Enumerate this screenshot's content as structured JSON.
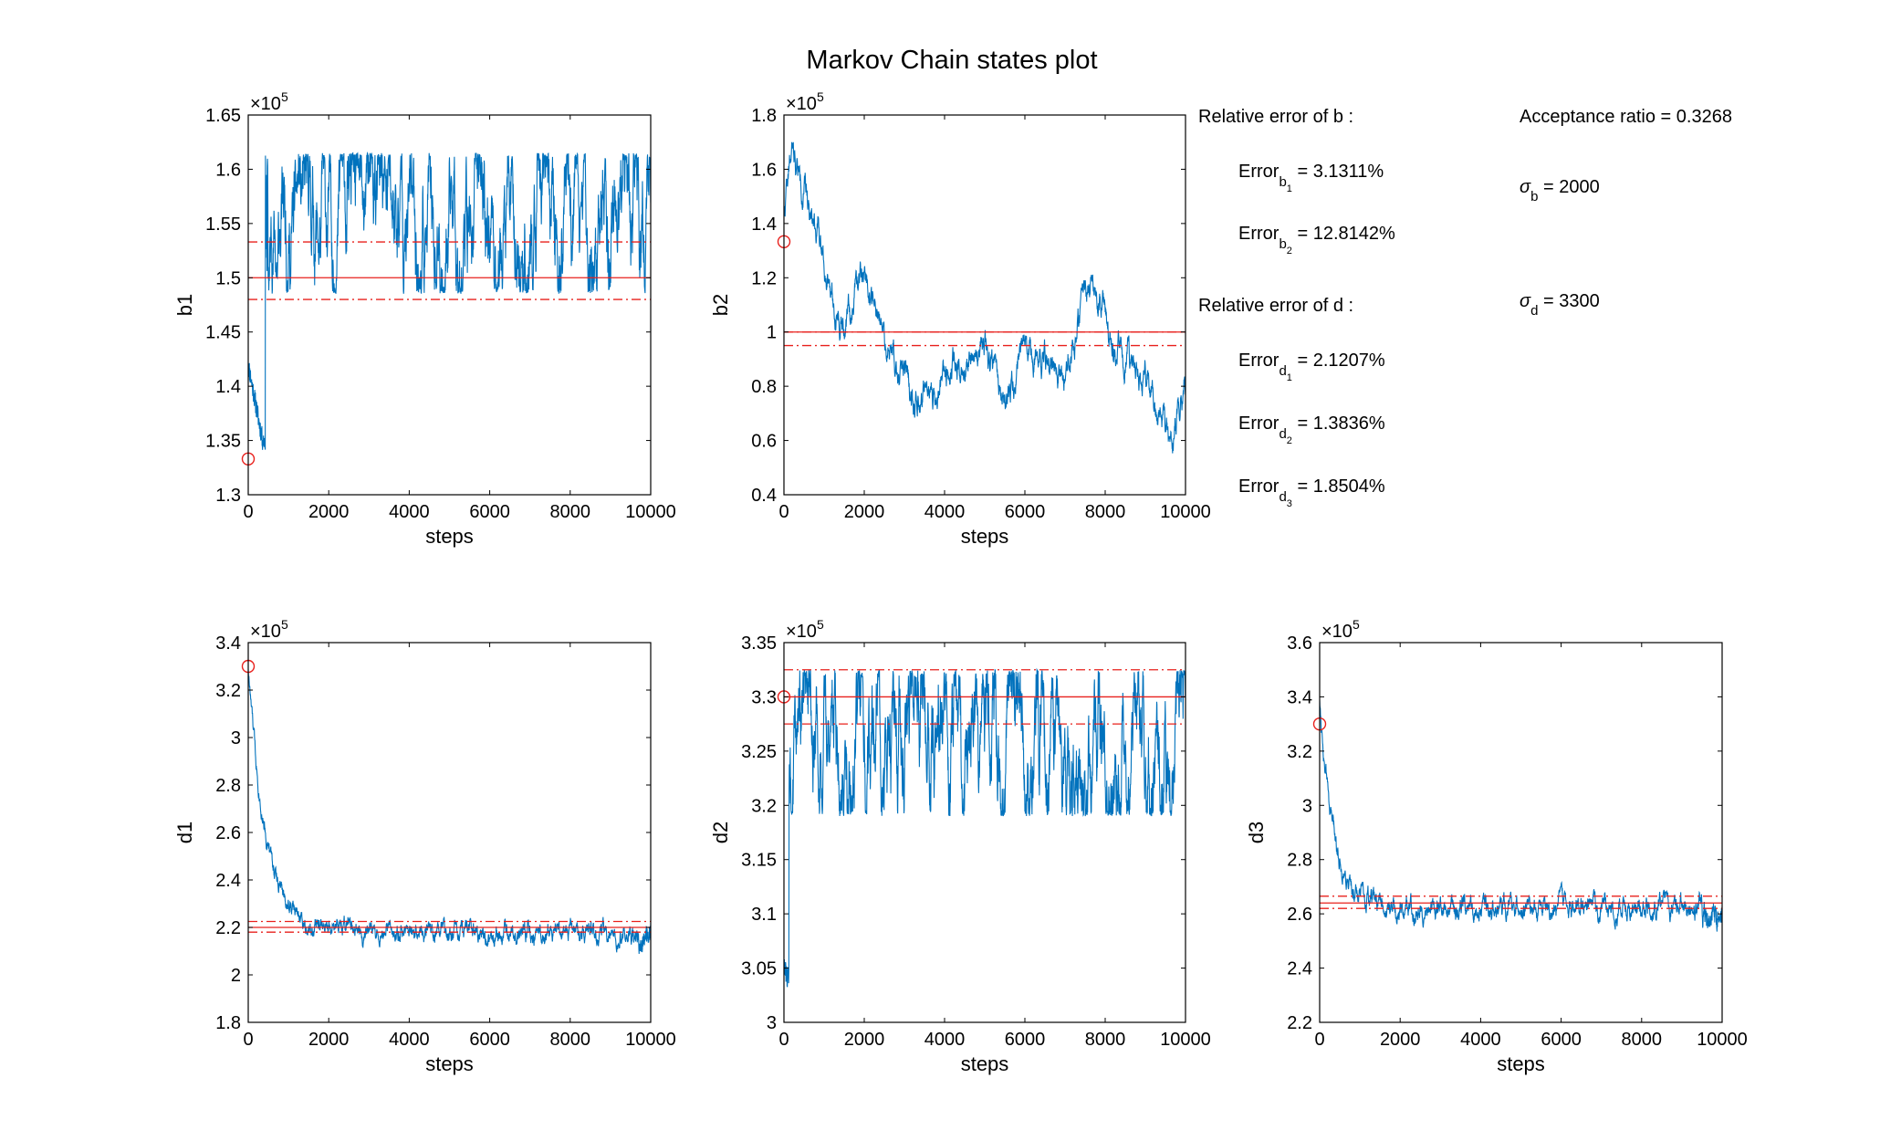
{
  "figure_title": "Markov Chain states plot",
  "chart_data": [
    {
      "type": "line",
      "id": "b1",
      "ylabel": "b1",
      "xlabel": "steps",
      "xlim": [
        0,
        10000
      ],
      "ylim": [
        1.3,
        1.65
      ],
      "exponent": "5",
      "xticks": [
        "0",
        "2000",
        "4000",
        "6000",
        "8000",
        "10000"
      ],
      "yticks": [
        "1.3",
        "1.35",
        "1.4",
        "1.45",
        "1.5",
        "1.55",
        "1.6",
        "1.65"
      ],
      "initial": 1.333,
      "true_value": 1.5,
      "ci": [
        1.48,
        1.533
      ],
      "series": [
        {
          "values_kind": "trace",
          "burn_steps": 500,
          "burn_from": 1.42,
          "burn_min": 1.35,
          "stationary_low": 1.485,
          "stationary_high": 1.615,
          "seed": 11
        }
      ]
    },
    {
      "type": "line",
      "id": "b2",
      "ylabel": "b2",
      "xlabel": "steps",
      "xlim": [
        0,
        10000
      ],
      "ylim": [
        0.4,
        1.8
      ],
      "exponent": "5",
      "xticks": [
        "0",
        "2000",
        "4000",
        "6000",
        "8000",
        "10000"
      ],
      "yticks": [
        "0.4",
        "0.6",
        "0.8",
        "1",
        "1.2",
        "1.4",
        "1.6",
        "1.8"
      ],
      "initial": 1.333,
      "true_value": 1.0,
      "ci": [
        0.95,
        1.0
      ],
      "series": [
        {
          "values_kind": "random_walk",
          "waypoints": [
            [
              0,
              1.45
            ],
            [
              200,
              1.65
            ],
            [
              800,
              1.4
            ],
            [
              1500,
              1.0
            ],
            [
              2000,
              1.25
            ],
            [
              2500,
              0.95
            ],
            [
              3500,
              0.7
            ],
            [
              4000,
              0.85
            ],
            [
              5000,
              0.95
            ],
            [
              5500,
              0.75
            ],
            [
              6000,
              0.95
            ],
            [
              7000,
              0.85
            ],
            [
              7700,
              1.2
            ],
            [
              8200,
              0.95
            ],
            [
              9000,
              0.85
            ],
            [
              9600,
              0.6
            ],
            [
              10000,
              0.8
            ]
          ],
          "seed": 22
        }
      ]
    },
    {
      "type": "line",
      "id": "d1",
      "ylabel": "d1",
      "xlabel": "steps",
      "xlim": [
        0,
        10000
      ],
      "ylim": [
        1.8,
        3.4
      ],
      "exponent": "5",
      "xticks": [
        "0",
        "2000",
        "4000",
        "6000",
        "8000",
        "10000"
      ],
      "yticks": [
        "1.8",
        "2",
        "2.2",
        "2.4",
        "2.6",
        "2.8",
        "3",
        "3.2",
        "3.4"
      ],
      "initial": 3.3,
      "true_value": 2.2,
      "ci": [
        2.18,
        2.225
      ],
      "series": [
        {
          "values_kind": "decay",
          "start": 3.3,
          "asymptote": 2.18,
          "tau": 450,
          "noise": 0.05,
          "seed": 33
        }
      ]
    },
    {
      "type": "line",
      "id": "d2",
      "ylabel": "d2",
      "xlabel": "steps",
      "xlim": [
        0,
        10000
      ],
      "ylim": [
        3.0,
        3.35
      ],
      "exponent": "5",
      "xticks": [
        "0",
        "2000",
        "4000",
        "6000",
        "8000",
        "10000"
      ],
      "yticks": [
        "3",
        "3.05",
        "3.1",
        "3.15",
        "3.2",
        "3.25",
        "3.3",
        "3.35"
      ],
      "initial": 3.3,
      "true_value": 3.3,
      "ci": [
        3.275,
        3.325
      ],
      "series": [
        {
          "values_kind": "trace",
          "burn_steps": 150,
          "burn_from": 3.05,
          "burn_min": 3.04,
          "stationary_low": 3.19,
          "stationary_high": 3.325,
          "seed": 44
        }
      ]
    },
    {
      "type": "line",
      "id": "d3",
      "ylabel": "d3",
      "xlabel": "steps",
      "xlim": [
        0,
        10000
      ],
      "ylim": [
        2.2,
        3.6
      ],
      "exponent": "5",
      "xticks": [
        "0",
        "2000",
        "4000",
        "6000",
        "8000",
        "10000"
      ],
      "yticks": [
        "2.2",
        "2.4",
        "2.6",
        "2.8",
        "3",
        "3.2",
        "3.4",
        "3.6"
      ],
      "initial": 3.3,
      "true_value": 2.64,
      "ci": [
        2.62,
        2.665
      ],
      "series": [
        {
          "values_kind": "decay",
          "start": 3.4,
          "asymptote": 2.62,
          "tau": 350,
          "noise": 0.05,
          "seed": 55
        }
      ]
    }
  ],
  "annotations": {
    "b_header": "Relative error of b :",
    "d_header": "Relative error of d :",
    "error_word": "Error",
    "b_errors": [
      {
        "sub": "b",
        "subsub": "1",
        "value": " = 3.1311%"
      },
      {
        "sub": "b",
        "subsub": "2",
        "value": " = 12.8142%"
      }
    ],
    "d_errors": [
      {
        "sub": "d",
        "subsub": "1",
        "value": " = 2.1207%"
      },
      {
        "sub": "d",
        "subsub": "2",
        "value": " = 1.3836%"
      },
      {
        "sub": "d",
        "subsub": "3",
        "value": " = 1.8504%"
      }
    ],
    "acceptance": "Acceptance ratio = 0.3268",
    "sigma_symbol": "σ",
    "sigma_b": {
      "sub": "b",
      "value": " = 2000"
    },
    "sigma_d": {
      "sub": "d",
      "value": " = 3300"
    }
  },
  "colors": {
    "trace": "#0072BD",
    "marker": "#E8201C",
    "ref": "#E8201C",
    "axis": "#000000"
  }
}
